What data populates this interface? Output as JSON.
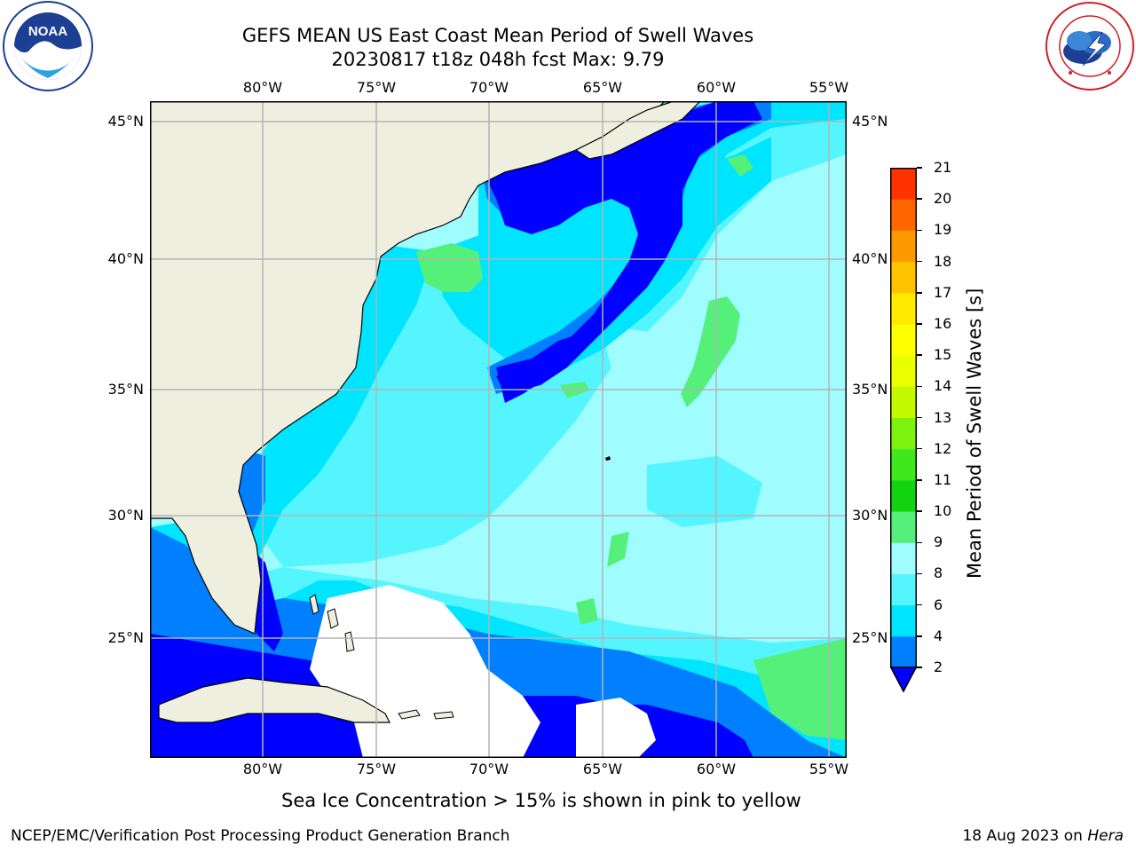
{
  "header": {
    "title_line1": "GEFS MEAN US East Coast Mean Period of Swell Waves",
    "title_line2": "20230817 t18z 048h fcst   Max: 9.79"
  },
  "logos": {
    "noaa_text": "NOAA",
    "nws_text": "NATIONAL WEATHER SERVICE"
  },
  "map": {
    "lon_labels": [
      "80°W",
      "75°W",
      "70°W",
      "65°W",
      "60°W",
      "55°W"
    ],
    "lat_labels": [
      "45°N",
      "40°N",
      "35°N",
      "30°N",
      "25°N"
    ],
    "colors": {
      "land": "#efefdf",
      "coast": "#000000",
      "grid": "#b3b3b3",
      "no_data": "#ffffff"
    }
  },
  "colorbar": {
    "title": "Mean Period of Swell Waves [s]",
    "levels": [
      "2",
      "4",
      "6",
      "8",
      "9",
      "10",
      "11",
      "12",
      "13",
      "14",
      "15",
      "16",
      "17",
      "18",
      "19",
      "20",
      "21"
    ],
    "colors": [
      "#0080ff",
      "#00e5ff",
      "#55f5ff",
      "#9ffdff",
      "#55f07a",
      "#11d411",
      "#3ee81a",
      "#7ef20f",
      "#c3fa00",
      "#eaff00",
      "#ffff00",
      "#ffea00",
      "#ffc400",
      "#ff9900",
      "#ff6600",
      "#ff3300"
    ],
    "under_color": "#0000ff"
  },
  "footer": {
    "note": "Sea Ice Concentration > 15% is shown in pink to yellow",
    "left": "NCEP/EMC/Verification Post Processing Product Generation Branch",
    "right_prefix": "18 Aug 2023 on",
    "right_host": "Hera"
  }
}
